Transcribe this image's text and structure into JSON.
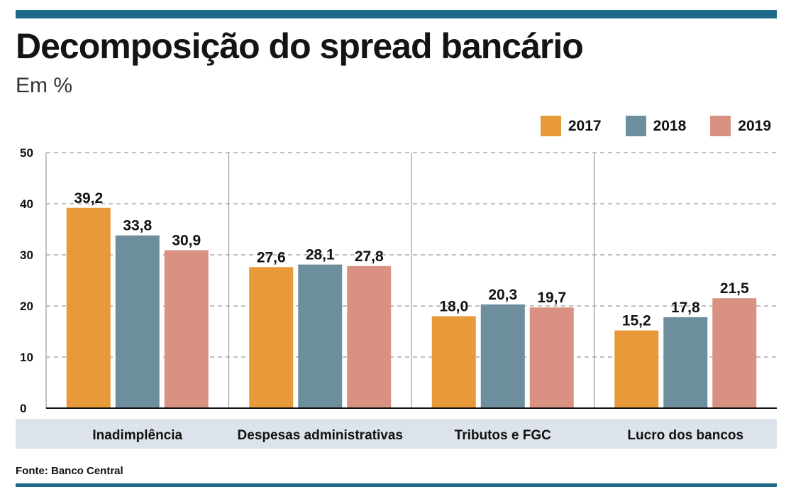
{
  "header": {
    "title": "Decomposição do spread bancário",
    "subtitle": "Em %"
  },
  "colors": {
    "2017": "#e89a3a",
    "2018": "#6d8e9c",
    "2019": "#d99282",
    "rule": "#1f6a8a",
    "category_band": "#dde3ea",
    "gridline": "#9a9a9a"
  },
  "chart_data": {
    "type": "bar",
    "categories": [
      "Inadimplência",
      "Despesas administrativas",
      "Tributos e FGC",
      "Lucro dos bancos"
    ],
    "series": [
      {
        "name": "2017",
        "values": [
          39.2,
          27.6,
          18.0,
          15.2
        ],
        "labels": [
          "39,2",
          "27,6",
          "18,0",
          "15,2"
        ]
      },
      {
        "name": "2018",
        "values": [
          33.8,
          28.1,
          20.3,
          17.8
        ],
        "labels": [
          "33,8",
          "28,1",
          "20,3",
          "17,8"
        ]
      },
      {
        "name": "2019",
        "values": [
          30.9,
          27.8,
          19.7,
          21.5
        ],
        "labels": [
          "30,9",
          "27,8",
          "19,7",
          "21,5"
        ]
      }
    ],
    "yticks": [
      0,
      10,
      20,
      30,
      40,
      50
    ],
    "ylim": [
      0,
      50
    ],
    "grid": true,
    "legend": "top-right"
  },
  "footer": {
    "source": "Fonte: Banco Central"
  }
}
